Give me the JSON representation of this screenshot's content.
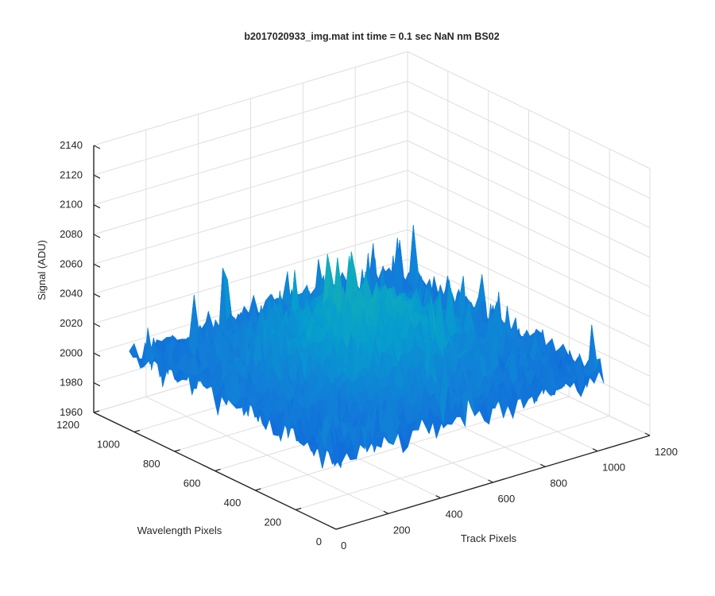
{
  "chart_data": {
    "type": "surface",
    "title": "b2017020933_img.mat int time = 0.1 sec  NaN nm BS02",
    "xlabel": "Track Pixels",
    "ylabel": "Wavelength Pixels",
    "zlabel": "Signal (ADU)",
    "xlim": [
      0,
      1200
    ],
    "ylim": [
      0,
      1200
    ],
    "zlim": [
      1960,
      2140
    ],
    "xticks": [
      "0",
      "200",
      "400",
      "600",
      "800",
      "1000",
      "1200"
    ],
    "yticks": [
      "0",
      "200",
      "400",
      "600",
      "800",
      "1000",
      "1200"
    ],
    "zticks": [
      "1960",
      "1980",
      "2000",
      "2020",
      "2040",
      "2060",
      "2080",
      "2100",
      "2120",
      "2140"
    ],
    "grid": true,
    "surface": {
      "x_range": [
        0,
        1024
      ],
      "y_range": [
        0,
        1024
      ],
      "baseline": 2010,
      "center_peak": 2050,
      "noise_min": 1970,
      "noise_max": 2125,
      "colormap": "parula"
    }
  }
}
